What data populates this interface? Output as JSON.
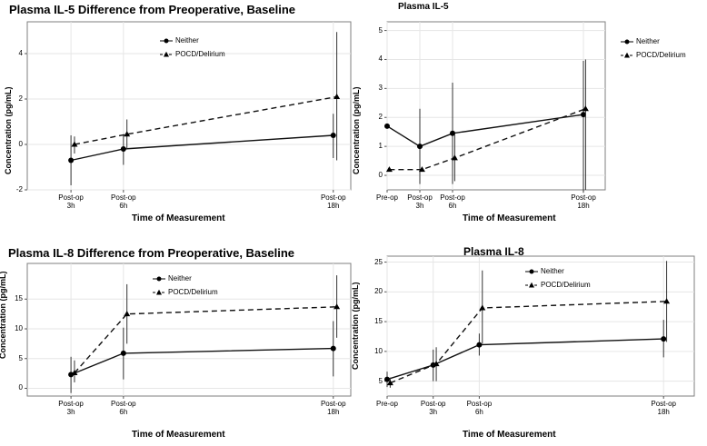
{
  "chart_data": [
    {
      "type": "line",
      "title": "Plasma IL-5 Difference from Preoperative, Baseline",
      "xlabel": "Time of Measurement",
      "ylabel": "Concentration (pg/mL)",
      "categories": [
        "Post-op\n3h",
        "Post-op\n6h",
        "Post-op\n18h"
      ],
      "x": [
        3,
        6,
        18
      ],
      "xlim": [
        0.5,
        19
      ],
      "ylim": [
        -2,
        5.4
      ],
      "yticks": [
        -2,
        0,
        2,
        4
      ],
      "series": [
        {
          "name": "Neither",
          "marker": "circle",
          "dash": "solid",
          "values": [
            -0.7,
            -0.2,
            0.4
          ],
          "lower": [
            -1.8,
            -0.9,
            -0.6
          ],
          "upper": [
            0.4,
            0.4,
            1.35
          ],
          "x": [
            3,
            6,
            18
          ]
        },
        {
          "name": "POCD/Delirium",
          "marker": "triangle",
          "dash": "dashed",
          "values": [
            0.0,
            0.45,
            2.1
          ],
          "lower": [
            -0.4,
            -0.2,
            -0.7
          ],
          "upper": [
            0.35,
            1.1,
            4.95
          ],
          "x": [
            3.2,
            6.2,
            18.2
          ]
        }
      ]
    },
    {
      "type": "line",
      "title": "Plasma IL-5",
      "xlabel": "Time of Measurement",
      "ylabel": "Concentration (pg/mL)",
      "categories": [
        "Pre-op",
        "Post-op\n3h",
        "Post-op\n6h",
        "Post-op\n18h"
      ],
      "x": [
        0,
        3,
        6,
        18
      ],
      "xlim": [
        0,
        20
      ],
      "ylim": [
        -0.5,
        5.3
      ],
      "yticks": [
        0,
        1,
        2,
        3,
        4,
        5
      ],
      "series": [
        {
          "name": "Neither",
          "marker": "circle",
          "dash": "solid",
          "values": [
            1.7,
            1.0,
            1.45,
            2.1
          ],
          "lower": [
            null,
            -0.3,
            -0.3,
            -0.6
          ],
          "upper": [
            null,
            2.3,
            3.2,
            3.95
          ],
          "x": [
            0,
            3,
            6,
            18
          ]
        },
        {
          "name": "POCD/Delirium",
          "marker": "triangle",
          "dash": "dashed",
          "values": [
            0.2,
            0.2,
            0.6,
            2.3
          ],
          "lower": [
            null,
            null,
            -0.2,
            -0.5
          ],
          "upper": [
            null,
            null,
            1.4,
            4.0
          ],
          "x": [
            0.2,
            3.2,
            6.2,
            18.2
          ]
        }
      ]
    },
    {
      "type": "line",
      "title": "Plasma IL-8 Difference from Preoperative, Baseline",
      "xlabel": "Time of Measurement",
      "ylabel": "Concentration (pg/mL)",
      "categories": [
        "Post-op\n3h",
        "Post-op\n6h",
        "Post-op\n18h"
      ],
      "x": [
        3,
        6,
        18
      ],
      "xlim": [
        0.5,
        19
      ],
      "ylim": [
        -1.3,
        21
      ],
      "yticks": [
        0,
        5,
        10,
        15
      ],
      "series": [
        {
          "name": "Neither",
          "marker": "circle",
          "dash": "solid",
          "values": [
            2.3,
            5.9,
            6.7
          ],
          "lower": [
            -0.8,
            1.5,
            2.0
          ],
          "upper": [
            5.3,
            10.2,
            11.3
          ],
          "x": [
            3,
            6,
            18
          ]
        },
        {
          "name": "POCD/Delirium",
          "marker": "triangle",
          "dash": "dashed",
          "values": [
            2.6,
            12.5,
            13.7
          ],
          "lower": [
            1.0,
            7.5,
            8.5
          ],
          "upper": [
            4.7,
            17.5,
            19.0
          ],
          "x": [
            3.2,
            6.2,
            18.2
          ]
        }
      ]
    },
    {
      "type": "line",
      "title": "Plasma IL-8",
      "xlabel": "Time of Measurement",
      "ylabel": "Concentration (pg/mL)",
      "categories": [
        "Pre-op",
        "Post-op\n3h",
        "Post-op\n6h",
        "Post-op\n18h"
      ],
      "x": [
        0,
        3,
        6,
        18
      ],
      "xlim": [
        0,
        20
      ],
      "ylim": [
        2.5,
        26
      ],
      "yticks": [
        5,
        10,
        15,
        20,
        25
      ],
      "series": [
        {
          "name": "Neither",
          "marker": "circle",
          "dash": "solid",
          "values": [
            5.3,
            7.7,
            11.1,
            12.1
          ],
          "lower": [
            4.0,
            5.0,
            9.3,
            9.0
          ],
          "upper": [
            6.6,
            10.3,
            13.0,
            15.3
          ],
          "x": [
            0,
            3,
            6,
            18
          ]
        },
        {
          "name": "POCD/Delirium",
          "marker": "triangle",
          "dash": "dashed",
          "values": [
            4.7,
            7.9,
            17.3,
            18.4
          ],
          "lower": [
            3.9,
            5.0,
            11.3,
            11.6
          ],
          "upper": [
            5.6,
            10.7,
            23.6,
            25.2
          ],
          "x": [
            0.2,
            3.2,
            6.2,
            18.2
          ]
        }
      ]
    }
  ]
}
